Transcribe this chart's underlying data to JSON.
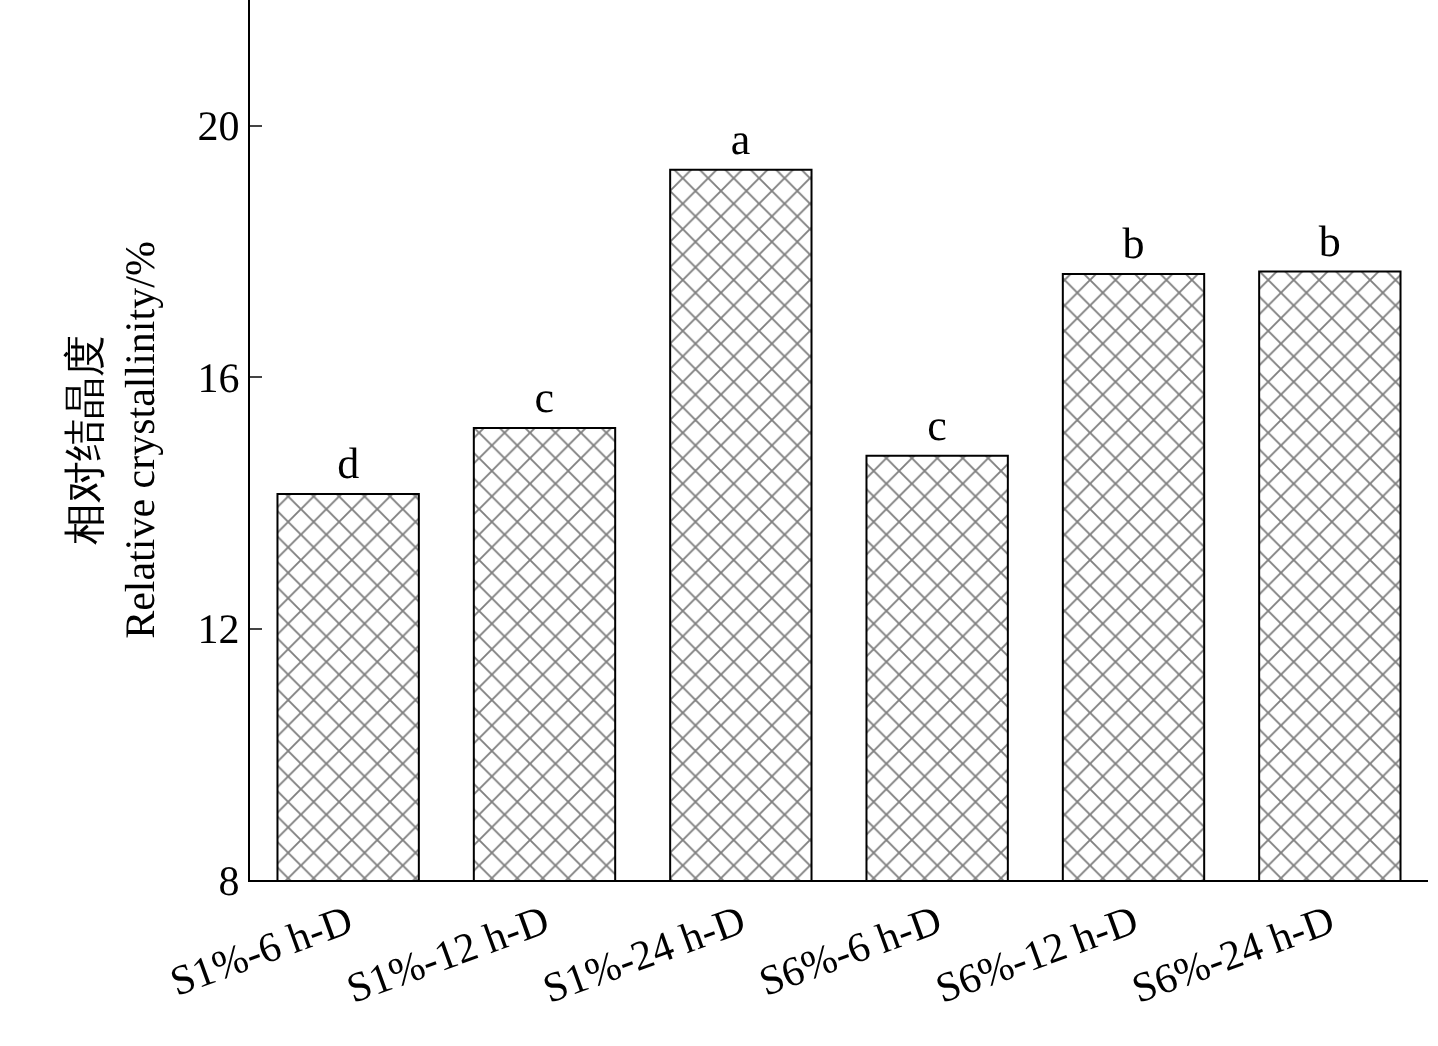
{
  "chart_data": {
    "type": "bar",
    "ylabel": "相对结晶度\nRelative crystallinity/%",
    "categories": [
      "S1%-6 h-D",
      "S1%-12 h-D",
      "S1%-24 h-D",
      "S6%-6 h-D",
      "S6%-12 h-D",
      "S6%-24 h-D"
    ],
    "values": [
      14.14,
      15.19,
      19.3,
      14.75,
      17.64,
      17.68
    ],
    "value_labels": [
      "d",
      "c",
      "a",
      "c",
      "b",
      "b"
    ],
    "color": "#000000",
    "ylim": [
      8,
      22
    ],
    "yticks": [
      8,
      12,
      16,
      20
    ]
  }
}
